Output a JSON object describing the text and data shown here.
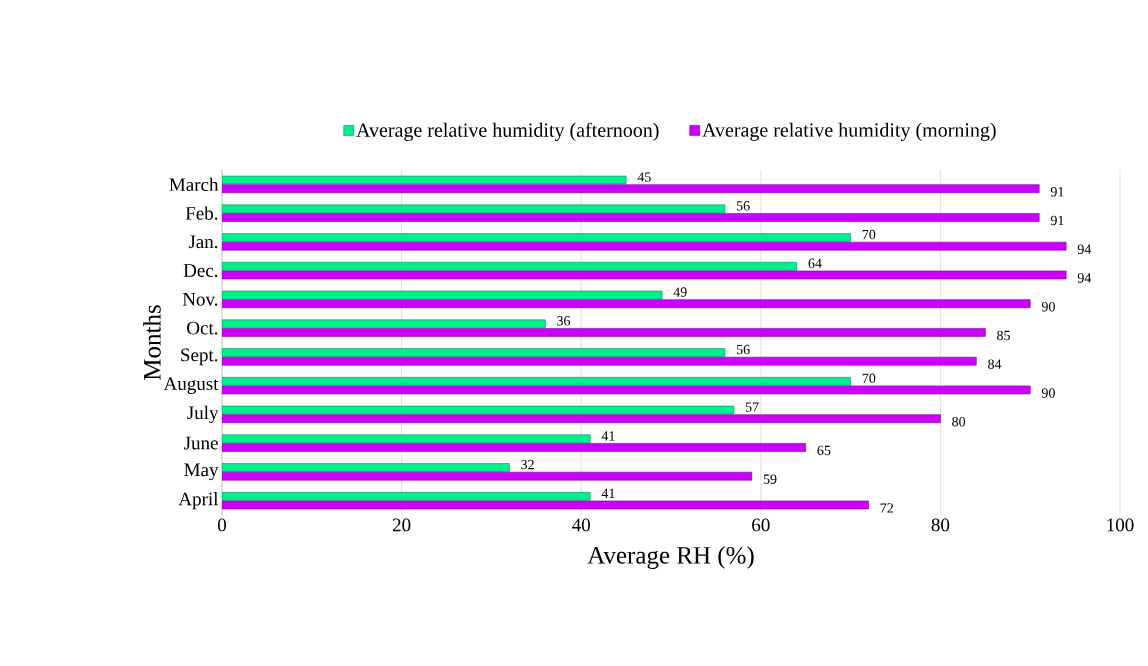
{
  "chart_data": {
    "type": "bar",
    "orientation": "horizontal",
    "xlabel": "Average RH (%)",
    "ylabel": "Months",
    "categories": [
      "March",
      "Feb.",
      "Jan.",
      "Dec.",
      "Nov.",
      "Oct.",
      "Sept.",
      "August",
      "July",
      "June",
      "May",
      "April"
    ],
    "series": [
      {
        "name": "Average relative humidity (afternoon)",
        "color": "#00f090",
        "values": [
          45,
          56,
          70,
          64,
          49,
          36,
          56,
          70,
          57,
          41,
          32,
          41
        ]
      },
      {
        "name": "Average relative humidity (morning)",
        "color": "#cc00ff",
        "values": [
          91,
          91,
          94,
          94,
          90,
          85,
          84,
          90,
          80,
          65,
          59,
          72
        ]
      }
    ],
    "xlim": [
      0,
      100
    ],
    "xticks": [
      0,
      20,
      40,
      60,
      80,
      100
    ],
    "grid": "x",
    "legend": "top",
    "data_labels": true
  }
}
